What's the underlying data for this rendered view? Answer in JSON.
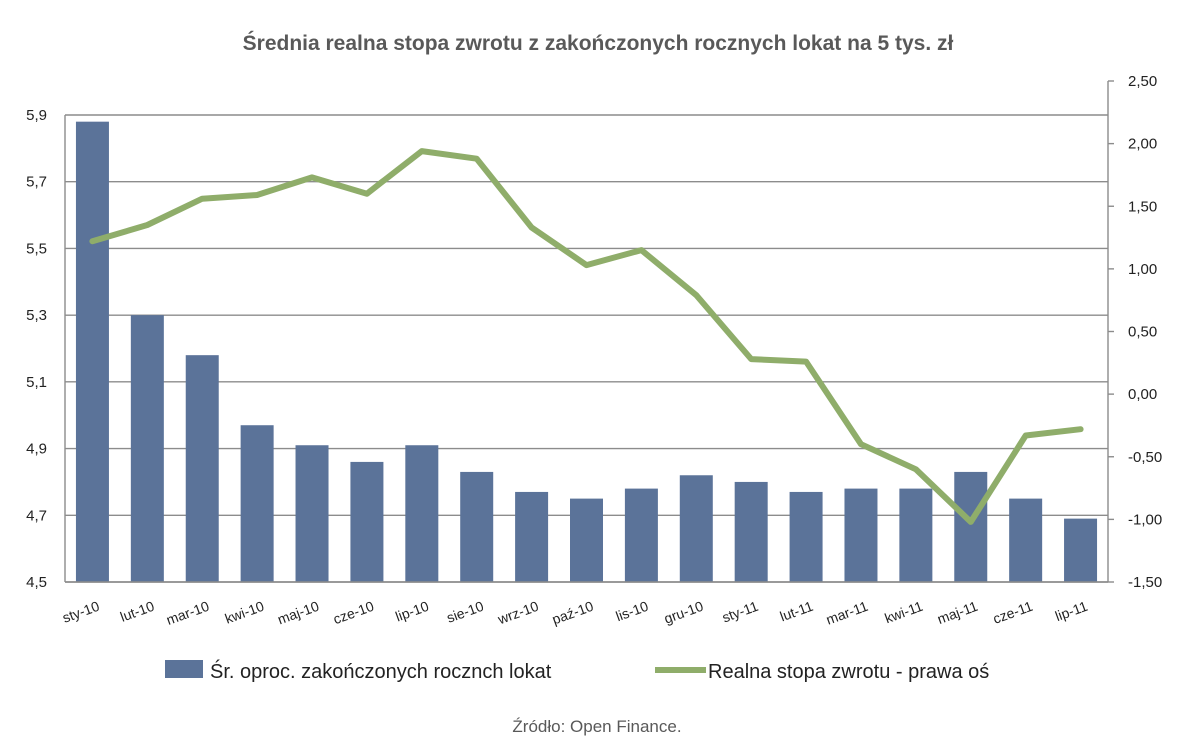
{
  "chart_data": {
    "type": "bar",
    "title": "Średnia realna stopa zwrotu z zakończonych rocznych lokat na 5 tys. zł",
    "source": "Źródło: Open Finance.",
    "categories": [
      "sty-10",
      "lut-10",
      "mar-10",
      "kwi-10",
      "maj-10",
      "cze-10",
      "lip-10",
      "sie-10",
      "wrz-10",
      "paź-10",
      "lis-10",
      "gru-10",
      "sty-11",
      "lut-11",
      "mar-11",
      "kwi-11",
      "maj-11",
      "cze-11",
      "lip-11"
    ],
    "series": [
      {
        "name": "Śr. oproc. zakończonych rocznch lokat",
        "type": "bar",
        "axis": "left",
        "color": "#5b7399",
        "values": [
          5.88,
          5.3,
          5.18,
          4.97,
          4.91,
          4.86,
          4.91,
          4.83,
          4.77,
          4.75,
          4.78,
          4.82,
          4.8,
          4.77,
          4.78,
          4.78,
          4.83,
          4.75,
          4.69
        ]
      },
      {
        "name": "Realna stopa zwrotu - prawa oś",
        "type": "line",
        "axis": "right",
        "color": "#8fad6a",
        "values": [
          1.22,
          1.35,
          1.56,
          1.59,
          1.73,
          1.6,
          1.94,
          1.88,
          1.33,
          1.03,
          1.15,
          0.79,
          0.28,
          0.26,
          -0.4,
          -0.6,
          -1.02,
          -0.33,
          -0.28
        ]
      }
    ],
    "y_left": {
      "min": 4.5,
      "max": 5.9,
      "ticks": [
        "4,5",
        "4,7",
        "4,9",
        "5,1",
        "5,3",
        "5,5",
        "5,7",
        "5,9"
      ]
    },
    "y_right": {
      "min": -1.5,
      "max": 2.5,
      "ticks": [
        "-1,50",
        "-1,00",
        "-0,50",
        "0,00",
        "0,50",
        "1,00",
        "1,50",
        "2,00",
        "2,50"
      ]
    },
    "grid": true,
    "legend_position": "bottom"
  }
}
